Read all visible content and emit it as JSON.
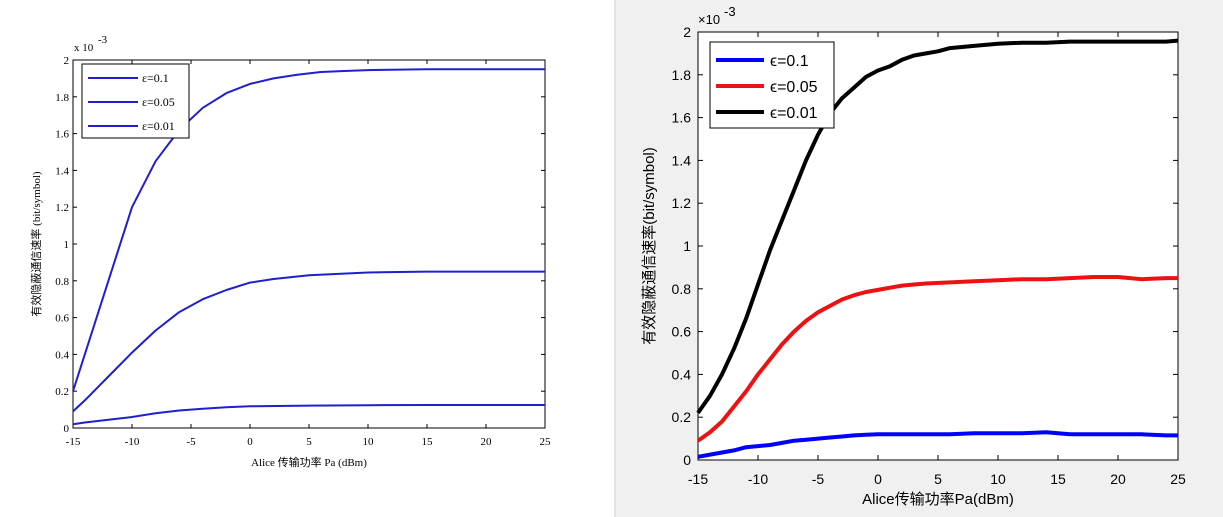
{
  "chart_data": [
    {
      "type": "line",
      "title": "",
      "xlabel": "Alice 传输功率 Pa (dBm)",
      "ylabel": "有效隐蔽通信速率 (bit/symbol)",
      "y_exponent": "x 10",
      "y_exponent_power": "-3",
      "xlim": [
        -15,
        25
      ],
      "ylim": [
        0,
        2
      ],
      "x_ticks": [
        "-15",
        "-10",
        "-5",
        "0",
        "5",
        "10",
        "15",
        "20",
        "25"
      ],
      "y_ticks": [
        "0",
        "0.2",
        "0.4",
        "0.6",
        "0.8",
        "1",
        "1.2",
        "1.4",
        "1.6",
        "1.8",
        "2"
      ],
      "grid": false,
      "legend_position": "top-left",
      "series": [
        {
          "name": "ε=0.1",
          "color": "#1f1fd0",
          "x": [
            -15,
            -14,
            -12,
            -10,
            -8,
            -6,
            -4,
            -2,
            0,
            5,
            10,
            15,
            20,
            25
          ],
          "values": [
            0.02,
            0.03,
            0.045,
            0.06,
            0.08,
            0.095,
            0.105,
            0.113,
            0.118,
            0.122,
            0.124,
            0.125,
            0.125,
            0.125
          ]
        },
        {
          "name": "ε=0.05",
          "color": "#1f1fd0",
          "x": [
            -15,
            -14,
            -12,
            -10,
            -8,
            -6,
            -4,
            -2,
            0,
            2,
            5,
            10,
            15,
            20,
            25
          ],
          "values": [
            0.09,
            0.15,
            0.28,
            0.41,
            0.53,
            0.63,
            0.7,
            0.75,
            0.79,
            0.81,
            0.83,
            0.845,
            0.85,
            0.85,
            0.85
          ]
        },
        {
          "name": "ε=0.01",
          "color": "#1f1fd0",
          "x": [
            -15,
            -14,
            -12,
            -10,
            -8,
            -6,
            -4,
            -2,
            0,
            2,
            4,
            6,
            8,
            10,
            15,
            20,
            25
          ],
          "values": [
            0.2,
            0.4,
            0.8,
            1.2,
            1.45,
            1.62,
            1.74,
            1.82,
            1.87,
            1.9,
            1.92,
            1.935,
            1.94,
            1.945,
            1.95,
            1.95,
            1.95
          ]
        }
      ]
    },
    {
      "type": "line",
      "title": "",
      "xlabel": "Alice传输功率Pa(dBm)",
      "ylabel": "有效隐蔽通信速率(bit/symbol)",
      "y_exponent": "×10",
      "y_exponent_power": "-3",
      "xlim": [
        -15,
        25
      ],
      "ylim": [
        0,
        2
      ],
      "x_ticks": [
        "-15",
        "-10",
        "-5",
        "0",
        "5",
        "10",
        "15",
        "20",
        "25"
      ],
      "y_ticks": [
        "0",
        "0.2",
        "0.4",
        "0.6",
        "0.8",
        "1",
        "1.2",
        "1.4",
        "1.6",
        "1.8",
        "2"
      ],
      "grid": false,
      "legend_position": "top-left",
      "series": [
        {
          "name": "ϵ=0.1",
          "color": "#0000ff",
          "x": [
            -15,
            -14,
            -13,
            -12,
            -11,
            -10,
            -9,
            -8,
            -7,
            -6,
            -5,
            -4,
            -3,
            -2,
            -1,
            0,
            2,
            4,
            6,
            8,
            10,
            12,
            14,
            16,
            18,
            20,
            22,
            24,
            25
          ],
          "values": [
            0.015,
            0.025,
            0.035,
            0.045,
            0.06,
            0.065,
            0.07,
            0.08,
            0.09,
            0.095,
            0.1,
            0.105,
            0.11,
            0.115,
            0.118,
            0.12,
            0.12,
            0.12,
            0.12,
            0.125,
            0.125,
            0.125,
            0.13,
            0.12,
            0.12,
            0.12,
            0.12,
            0.115,
            0.115
          ]
        },
        {
          "name": "ϵ=0.05",
          "color": "#ee1111",
          "x": [
            -15,
            -14,
            -13,
            -12,
            -11,
            -10,
            -9,
            -8,
            -7,
            -6,
            -5,
            -4,
            -3,
            -2,
            -1,
            0,
            1,
            2,
            3,
            4,
            6,
            8,
            10,
            12,
            14,
            16,
            18,
            20,
            22,
            24,
            25
          ],
          "values": [
            0.09,
            0.13,
            0.18,
            0.25,
            0.32,
            0.4,
            0.47,
            0.54,
            0.6,
            0.65,
            0.69,
            0.72,
            0.75,
            0.77,
            0.785,
            0.795,
            0.805,
            0.815,
            0.82,
            0.825,
            0.83,
            0.835,
            0.84,
            0.845,
            0.845,
            0.85,
            0.855,
            0.855,
            0.845,
            0.85,
            0.85
          ]
        },
        {
          "name": "ϵ=0.01",
          "color": "#000000",
          "x": [
            -15,
            -14,
            -13,
            -12,
            -11,
            -10,
            -9,
            -8,
            -7,
            -6,
            -5,
            -4,
            -3,
            -2,
            -1,
            0,
            1,
            2,
            3,
            4,
            5,
            6,
            8,
            10,
            12,
            14,
            16,
            18,
            20,
            22,
            24,
            25
          ],
          "values": [
            0.22,
            0.3,
            0.4,
            0.52,
            0.66,
            0.82,
            0.98,
            1.12,
            1.26,
            1.4,
            1.52,
            1.62,
            1.69,
            1.74,
            1.79,
            1.82,
            1.84,
            1.87,
            1.89,
            1.9,
            1.91,
            1.925,
            1.935,
            1.945,
            1.95,
            1.95,
            1.955,
            1.955,
            1.955,
            1.955,
            1.955,
            1.96
          ]
        }
      ]
    }
  ]
}
